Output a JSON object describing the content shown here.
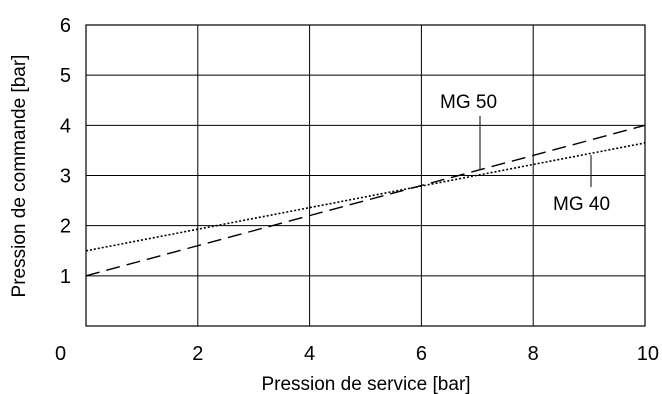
{
  "chart_data": {
    "type": "line",
    "title": "",
    "xlabel": "Pression de service [bar]",
    "ylabel": "Pression de commande [bar]",
    "xlim": [
      0,
      10
    ],
    "ylim": [
      0,
      6
    ],
    "x_ticks": [
      "0",
      "2",
      "4",
      "6",
      "8",
      "10"
    ],
    "y_ticks": [
      "1",
      "2",
      "3",
      "4",
      "5",
      "6"
    ],
    "grid": true,
    "legend": "none",
    "series": [
      {
        "label": "MG 50",
        "style": "dashed",
        "x": [
          0,
          10
        ],
        "y": [
          1.0,
          4.0
        ]
      },
      {
        "label": "MG 40",
        "style": "dotted",
        "x": [
          0,
          10
        ],
        "y": [
          1.5,
          3.65
        ]
      }
    ]
  }
}
